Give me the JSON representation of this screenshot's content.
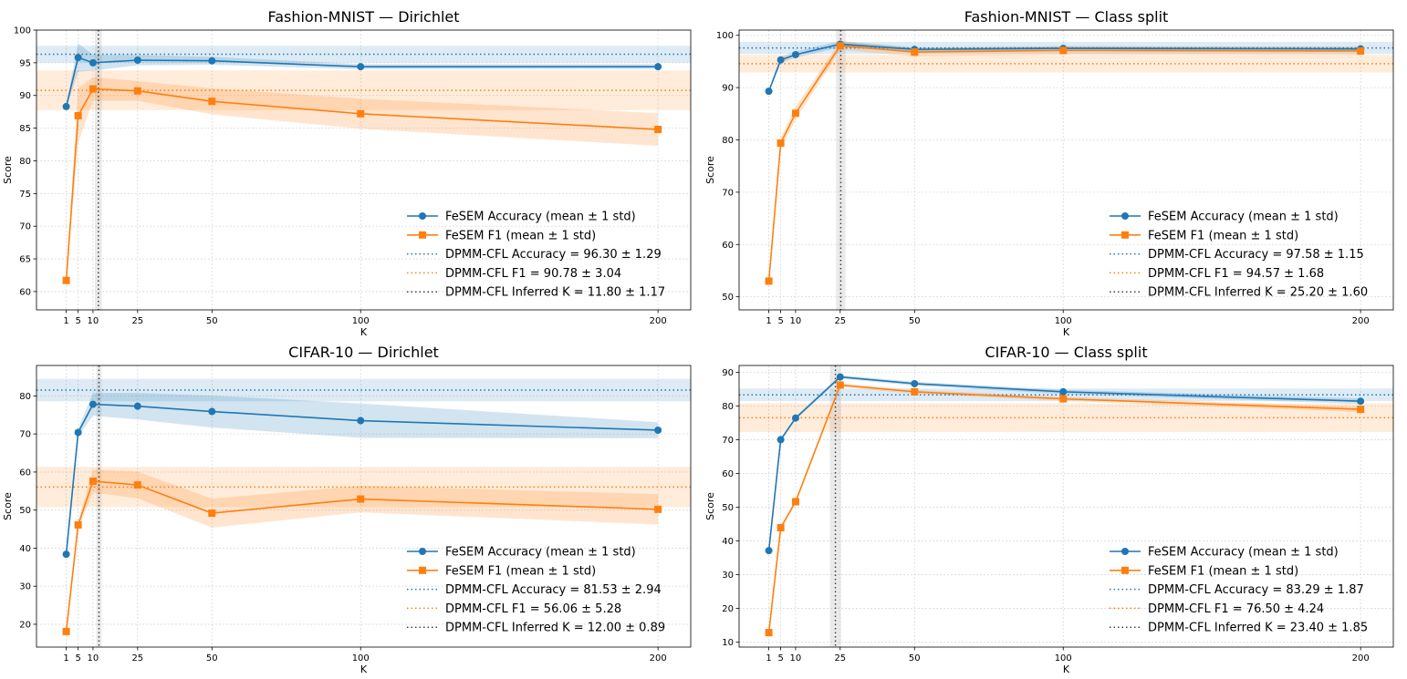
{
  "colors": {
    "acc": "#1f77b4",
    "f1": "#ff7f0e",
    "inferred": "#444444",
    "grid": "#d9d9d9"
  },
  "chart_data": [
    {
      "type": "line",
      "title": "Fashion-MNIST — Dirichlet",
      "xlabel": "K",
      "ylabel": "Score",
      "x": [
        1,
        5,
        10,
        25,
        50,
        100,
        200
      ],
      "xticks": [
        1,
        5,
        10,
        25,
        50,
        100,
        200
      ],
      "xlim": [
        -9,
        211
      ],
      "ylim": [
        57.2,
        100
      ],
      "yticks": [
        60,
        65,
        70,
        75,
        80,
        85,
        90,
        95,
        100
      ],
      "series": [
        {
          "name": "FeSEM Accuracy (mean ± 1 std)",
          "marker": "circle",
          "color": "#1f77b4",
          "values": [
            88.3,
            95.8,
            95.0,
            95.4,
            95.3,
            94.4,
            94.4
          ],
          "std": [
            0.3,
            2.2,
            1.2,
            0.8,
            0.6,
            0.4,
            0.4
          ]
        },
        {
          "name": "FeSEM F1 (mean ± 1 std)",
          "marker": "square",
          "color": "#ff7f0e",
          "values": [
            61.7,
            86.9,
            91.0,
            90.7,
            89.1,
            87.2,
            84.8
          ],
          "std": [
            0.3,
            4.2,
            1.8,
            1.5,
            2.0,
            2.3,
            2.5
          ]
        }
      ],
      "reference_lines": [
        {
          "label": "DPMM-CFL Accuracy = 96.30 ± 1.29",
          "axis": "y",
          "value": 96.3,
          "std": 1.29,
          "color": "#1f77b4"
        },
        {
          "label": "DPMM-CFL F1 = 90.78 ± 3.04",
          "axis": "y",
          "value": 90.78,
          "std": 3.04,
          "color": "#ff7f0e"
        },
        {
          "label": "DPMM-CFL Inferred K = 11.80 ± 1.17",
          "axis": "x",
          "value": 11.8,
          "std": 1.17,
          "color": "#444444"
        }
      ],
      "legend": "lower-right"
    },
    {
      "type": "line",
      "title": "Fashion-MNIST — Class split",
      "xlabel": "K",
      "ylabel": "Score",
      "x": [
        1,
        5,
        10,
        25,
        50,
        100,
        200
      ],
      "xticks": [
        1,
        5,
        10,
        25,
        50,
        100,
        200
      ],
      "xlim": [
        -9,
        211
      ],
      "ylim": [
        47.5,
        101
      ],
      "yticks": [
        50,
        60,
        70,
        80,
        90,
        100
      ],
      "series": [
        {
          "name": "FeSEM Accuracy (mean ± 1 std)",
          "marker": "circle",
          "color": "#1f77b4",
          "values": [
            89.3,
            95.3,
            96.3,
            98.3,
            97.3,
            97.5,
            97.4
          ],
          "std": [
            0.3,
            0.6,
            0.6,
            0.6,
            0.4,
            0.4,
            0.4
          ]
        },
        {
          "name": "FeSEM F1 (mean ± 1 std)",
          "marker": "square",
          "color": "#ff7f0e",
          "values": [
            53.0,
            79.4,
            85.1,
            98.0,
            96.8,
            97.1,
            97.0
          ],
          "std": [
            0.3,
            1.0,
            1.3,
            0.8,
            0.8,
            0.8,
            0.8
          ]
        }
      ],
      "reference_lines": [
        {
          "label": "DPMM-CFL Accuracy = 97.58 ± 1.15",
          "axis": "y",
          "value": 97.58,
          "std": 1.15,
          "color": "#1f77b4"
        },
        {
          "label": "DPMM-CFL F1 = 94.57 ± 1.68",
          "axis": "y",
          "value": 94.57,
          "std": 1.68,
          "color": "#ff7f0e"
        },
        {
          "label": "DPMM-CFL Inferred K = 25.20 ± 1.60",
          "axis": "x",
          "value": 25.2,
          "std": 1.6,
          "color": "#444444"
        }
      ],
      "legend": "lower-right"
    },
    {
      "type": "line",
      "title": "CIFAR-10 — Dirichlet",
      "xlabel": "K",
      "ylabel": "Score",
      "x": [
        1,
        5,
        10,
        25,
        50,
        100,
        200
      ],
      "xticks": [
        1,
        5,
        10,
        25,
        50,
        100,
        200
      ],
      "xlim": [
        -9,
        211
      ],
      "ylim": [
        14,
        88
      ],
      "yticks": [
        20,
        30,
        40,
        50,
        60,
        70,
        80
      ],
      "series": [
        {
          "name": "FeSEM Accuracy (mean ± 1 std)",
          "marker": "circle",
          "color": "#1f77b4",
          "values": [
            38.4,
            70.4,
            77.8,
            77.3,
            75.9,
            73.5,
            71.0
          ],
          "std": [
            0.3,
            1.0,
            3.0,
            3.5,
            4.2,
            4.5,
            2.1
          ]
        },
        {
          "name": "FeSEM F1 (mean ± 1 std)",
          "marker": "square",
          "color": "#ff7f0e",
          "values": [
            18.1,
            46.1,
            57.6,
            56.6,
            49.2,
            52.9,
            50.2
          ],
          "std": [
            0.3,
            1.0,
            3.0,
            3.5,
            3.8,
            3.5,
            4.0
          ]
        }
      ],
      "reference_lines": [
        {
          "label": "DPMM-CFL Accuracy = 81.53 ± 2.94",
          "axis": "y",
          "value": 81.53,
          "std": 2.94,
          "color": "#1f77b4"
        },
        {
          "label": "DPMM-CFL F1 = 56.06 ± 5.28",
          "axis": "y",
          "value": 56.06,
          "std": 5.28,
          "color": "#ff7f0e"
        },
        {
          "label": "DPMM-CFL Inferred K = 12.00 ± 0.89",
          "axis": "x",
          "value": 12.0,
          "std": 0.89,
          "color": "#444444"
        }
      ],
      "legend": "lower-right"
    },
    {
      "type": "line",
      "title": "CIFAR-10 — Class split",
      "xlabel": "K",
      "ylabel": "Score",
      "x": [
        1,
        5,
        10,
        25,
        50,
        100,
        200
      ],
      "xticks": [
        1,
        5,
        10,
        25,
        50,
        100,
        200
      ],
      "xlim": [
        -9,
        211
      ],
      "ylim": [
        8.5,
        92
      ],
      "yticks": [
        10,
        20,
        30,
        40,
        50,
        60,
        70,
        80,
        90
      ],
      "series": [
        {
          "name": "FeSEM Accuracy (mean ± 1 std)",
          "marker": "circle",
          "color": "#1f77b4",
          "values": [
            37.1,
            70.0,
            76.4,
            88.6,
            86.6,
            84.2,
            81.4
          ],
          "std": [
            0.3,
            0.5,
            0.5,
            0.5,
            0.6,
            0.6,
            0.8
          ]
        },
        {
          "name": "FeSEM F1 (mean ± 1 std)",
          "marker": "square",
          "color": "#ff7f0e",
          "values": [
            12.8,
            43.9,
            51.6,
            86.2,
            84.2,
            82.1,
            79.0
          ],
          "std": [
            0.3,
            0.5,
            0.5,
            0.5,
            0.6,
            0.6,
            0.8
          ]
        }
      ],
      "reference_lines": [
        {
          "label": "DPMM-CFL Accuracy = 83.29 ± 1.87",
          "axis": "y",
          "value": 83.29,
          "std": 1.87,
          "color": "#1f77b4"
        },
        {
          "label": "DPMM-CFL F1 = 76.50 ± 4.24",
          "axis": "y",
          "value": 76.5,
          "std": 4.24,
          "color": "#ff7f0e"
        },
        {
          "label": "DPMM-CFL Inferred K = 23.40 ± 1.85",
          "axis": "x",
          "value": 23.4,
          "std": 1.85,
          "color": "#444444"
        }
      ],
      "legend": "lower-right"
    }
  ]
}
